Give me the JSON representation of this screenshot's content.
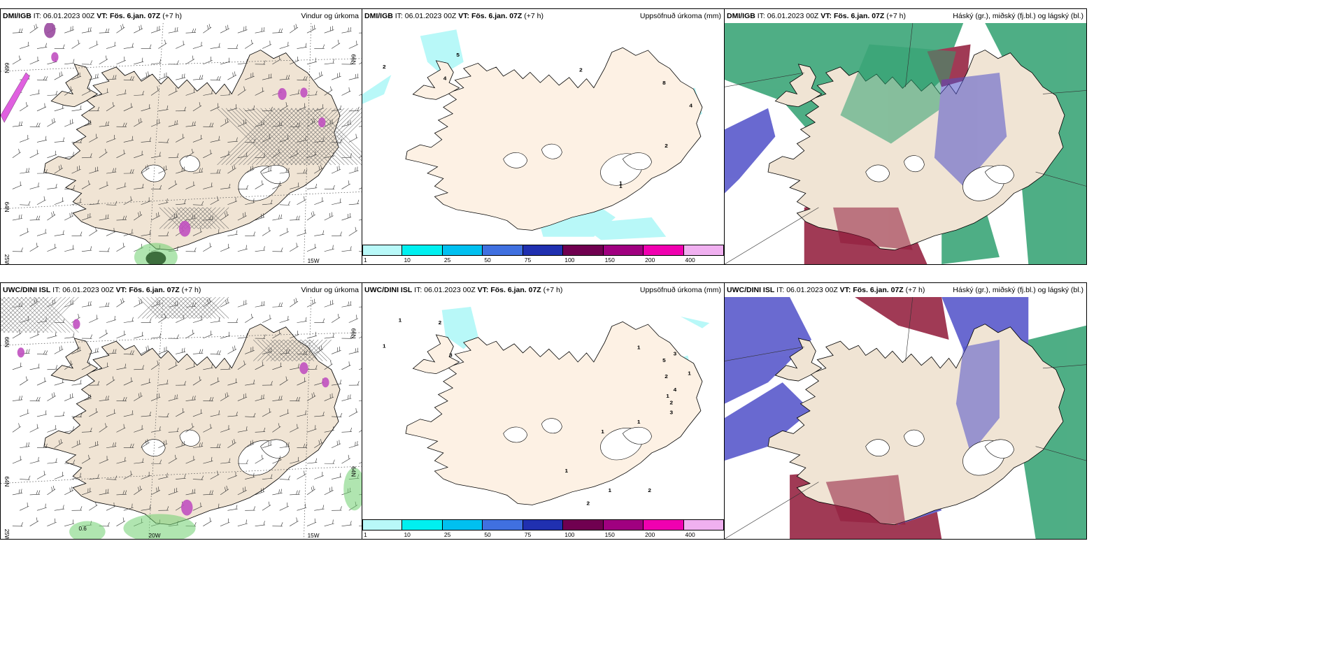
{
  "panels": [
    {
      "model": "DMI/IGB",
      "it_label": "IT:",
      "it": "06.01.2023 00Z",
      "vt_label": "VT:",
      "vt": "Fös. 6.jan. 07Z",
      "lead": "(+7 h)",
      "product": "Vindur og úrkoma",
      "type": "wind"
    },
    {
      "model": "DMI/IGB",
      "it_label": "IT:",
      "it": "06.01.2023 00Z",
      "vt_label": "VT:",
      "vt": "Fös. 6.jan. 07Z",
      "lead": "(+7 h)",
      "product": "Uppsöfnuð úrkoma (mm)",
      "type": "precip"
    },
    {
      "model": "DMI/IGB",
      "it_label": "IT:",
      "it": "06.01.2023 00Z",
      "vt_label": "VT:",
      "vt": "Fös. 6.jan. 07Z",
      "lead": "(+7 h)",
      "product": "Háský (gr.), miðský (fj.bl.) og lágský (bl.)",
      "type": "cloud"
    },
    {
      "model": "UWC/DINI ISL",
      "it_label": "IT:",
      "it": "06.01.2023 00Z",
      "vt_label": "VT:",
      "vt": "Fös. 6.jan. 07Z",
      "lead": "(+7 h)",
      "product": "Vindur og úrkoma",
      "type": "wind"
    },
    {
      "model": "UWC/DINI ISL",
      "it_label": "IT:",
      "it": "06.01.2023 00Z",
      "vt_label": "VT:",
      "vt": "Fös. 6.jan. 07Z",
      "lead": "(+7 h)",
      "product": "Uppsöfnuð úrkoma (mm)",
      "type": "precip"
    },
    {
      "model": "UWC/DINI ISL",
      "it_label": "IT:",
      "it": "06.01.2023 00Z",
      "vt_label": "VT:",
      "vt": "Fös. 6.jan. 07Z",
      "lead": "(+7 h)",
      "product": "Háský (gr.), miðský (fj.bl.) og lágský (bl.)",
      "type": "cloud"
    }
  ],
  "grid_labels": {
    "lat_66": "66N",
    "lat_64": "64N",
    "lon_25": "25W",
    "lon_20": "20W",
    "lon_15": "15W"
  },
  "precip_colorbar": {
    "colors": [
      "#b8f8f8",
      "#00f0f0",
      "#00c0f0",
      "#4070e0",
      "#2030b0",
      "#700050",
      "#a00080",
      "#f000b0",
      "#f0b0f0"
    ],
    "ticks": [
      "1",
      "10",
      "25",
      "50",
      "75",
      "100",
      "150",
      "200",
      "400"
    ]
  },
  "precip_labels_top": [
    "2",
    "4",
    "5",
    "2",
    "8",
    "4",
    "2",
    "1",
    "1"
  ],
  "precip_labels_bottom": [
    "1",
    "1",
    "2",
    "3",
    "3",
    "1",
    "5",
    "2",
    "1",
    "4",
    "1",
    "2",
    "3",
    "1",
    "1",
    "1",
    "1",
    "2",
    "2"
  ],
  "wind_labels_bottom": [
    "0.6"
  ],
  "colors": {
    "land": "#f0e4d4",
    "land_precip": "#fdf1e4",
    "ocean": "#ffffff",
    "high": "#30a070",
    "mid": "#5050c8",
    "low": "#901838"
  }
}
